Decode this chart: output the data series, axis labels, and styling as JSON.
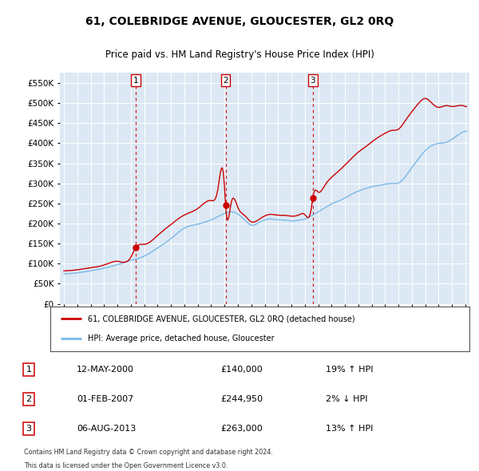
{
  "title": "61, COLEBRIDGE AVENUE, GLOUCESTER, GL2 0RQ",
  "subtitle": "Price paid vs. HM Land Registry's House Price Index (HPI)",
  "legend_line1": "61, COLEBRIDGE AVENUE, GLOUCESTER, GL2 0RQ (detached house)",
  "legend_line2": "HPI: Average price, detached house, Gloucester",
  "footnote1": "Contains HM Land Registry data © Crown copyright and database right 2024.",
  "footnote2": "This data is licensed under the Open Government Licence v3.0.",
  "transactions": [
    {
      "num": 1,
      "date": "12-MAY-2000",
      "price": 140000,
      "hpi_diff": "19% ↑ HPI",
      "x": 2000.37
    },
    {
      "num": 2,
      "date": "01-FEB-2007",
      "price": 244950,
      "hpi_diff": "2% ↓ HPI",
      "x": 2007.08
    },
    {
      "num": 3,
      "date": "06-AUG-2013",
      "price": 263000,
      "hpi_diff": "13% ↑ HPI",
      "x": 2013.59
    }
  ],
  "hpi_color": "#7ab8e8",
  "price_color": "#cc0000",
  "dashed_color": "#cc0000",
  "plot_bg": "#dce9f5",
  "ylim": [
    0,
    575000
  ],
  "yticks": [
    0,
    50000,
    100000,
    150000,
    200000,
    250000,
    300000,
    350000,
    400000,
    450000,
    500000,
    550000
  ],
  "xlim_start": 1994.7,
  "xlim_end": 2025.3
}
